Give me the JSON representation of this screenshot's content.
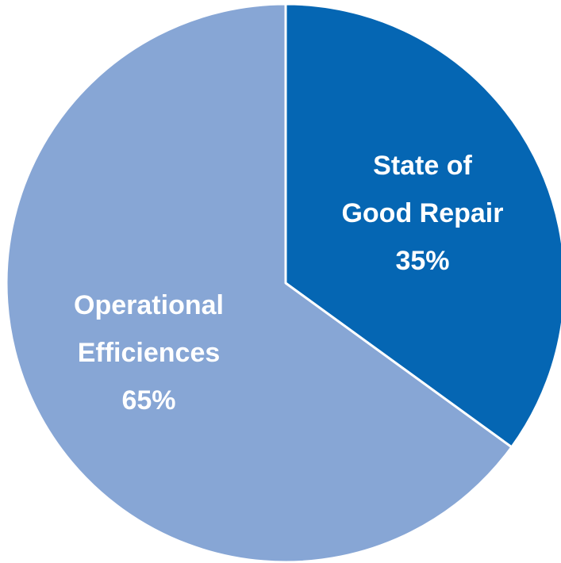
{
  "chart_data": {
    "type": "pie",
    "categories": [
      "State of Good Repair",
      "Operational Efficiences"
    ],
    "values": [
      35,
      65
    ],
    "value_labels": [
      "35%",
      "65%"
    ],
    "colors": [
      "#0566b3",
      "#87a6d5"
    ]
  }
}
